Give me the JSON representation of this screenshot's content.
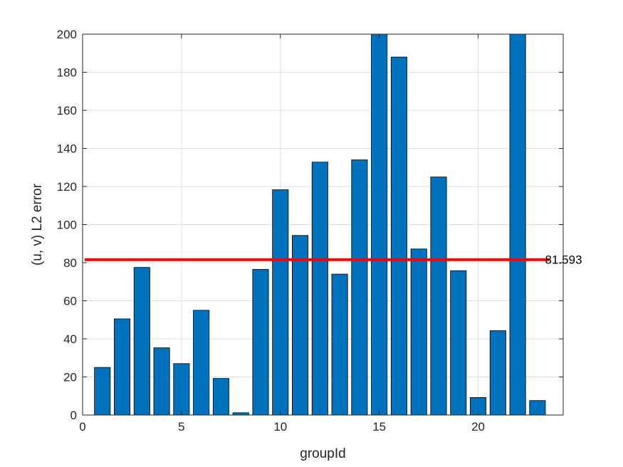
{
  "chart_data": {
    "type": "bar",
    "xlabel": "groupId",
    "ylabel": "(u, v) L2 error",
    "xlim": [
      0,
      24.3
    ],
    "ylim": [
      0,
      200
    ],
    "xticks": [
      0,
      5,
      10,
      15,
      20
    ],
    "yticks": [
      0,
      20,
      40,
      60,
      80,
      100,
      120,
      140,
      160,
      180,
      200
    ],
    "grid": true,
    "x": [
      1,
      2,
      3,
      4,
      5,
      6,
      7,
      8,
      9,
      10,
      11,
      12,
      13,
      14,
      15,
      16,
      17,
      18,
      19,
      20,
      21,
      22,
      23
    ],
    "values": [
      25,
      50.5,
      77.5,
      35.3,
      27,
      55,
      19.2,
      1.2,
      76.5,
      118.3,
      94.3,
      132.8,
      74,
      134,
      200,
      188,
      87.2,
      125,
      75.8,
      9.2,
      44.3,
      200,
      7.6
    ],
    "bar_color": "#0072BD",
    "mean_line": {
      "value": 81.593,
      "label": "81.593",
      "color": "#FF0000"
    }
  }
}
